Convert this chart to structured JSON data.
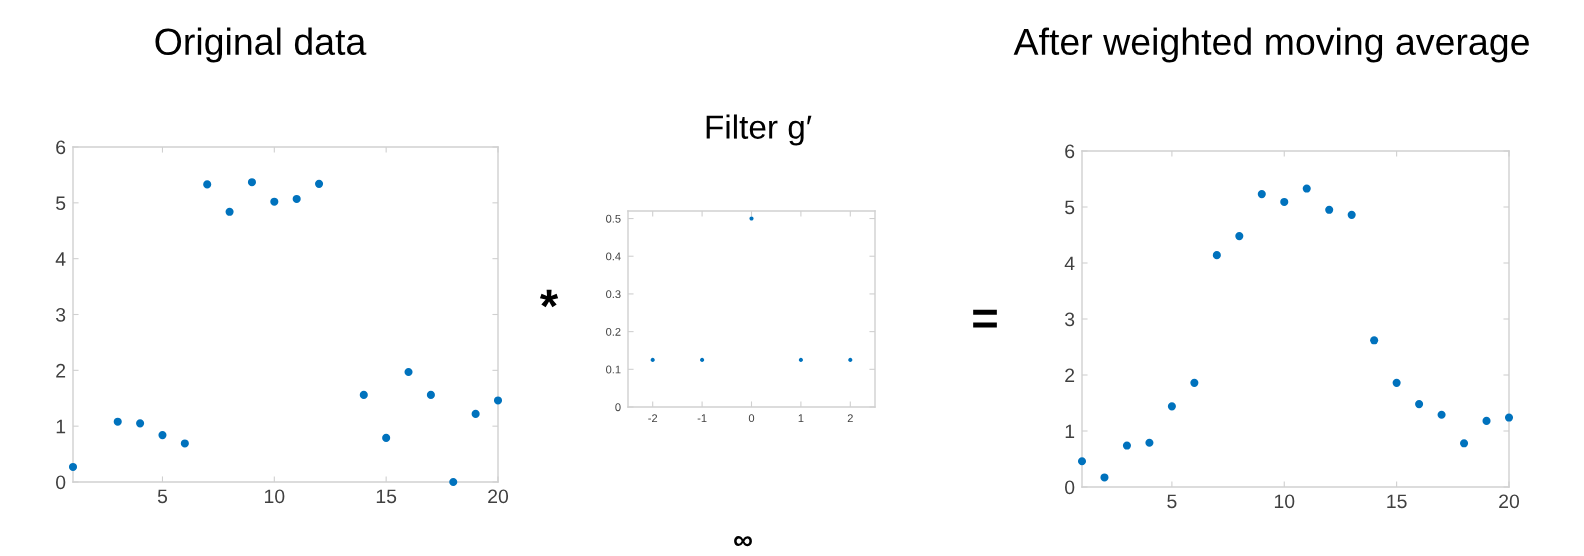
{
  "chart_data": [
    {
      "type": "scatter",
      "title": "Original data",
      "x": [
        1,
        3,
        4,
        5,
        6,
        7,
        8,
        9,
        10,
        11,
        12,
        14,
        15,
        16,
        17,
        18,
        19,
        20
      ],
      "values": [
        0.27,
        1.08,
        1.05,
        0.84,
        0.69,
        5.33,
        4.84,
        5.37,
        5.02,
        5.07,
        5.34,
        1.56,
        0.79,
        1.97,
        1.56,
        0.0,
        1.22,
        1.46
      ],
      "color": "#0072bd",
      "marker": "circle",
      "xlim": [
        1,
        20
      ],
      "ylim": [
        0,
        6
      ],
      "xticks": [
        5,
        10,
        15,
        20
      ],
      "yticks": [
        0,
        1,
        2,
        3,
        4,
        5,
        6
      ],
      "grid": false,
      "annotations": [
        "*"
      ]
    },
    {
      "type": "scatter",
      "title": "Filter g′",
      "x": [
        -2,
        -1,
        0,
        1,
        2
      ],
      "values": [
        0.125,
        0.125,
        0.5,
        0.125,
        0.125
      ],
      "color": "#0072bd",
      "marker": "circle",
      "xlim": [
        -2.5,
        2.5
      ],
      "ylim": [
        0,
        0.52
      ],
      "xticks": [
        -2,
        -1,
        0,
        1,
        2
      ],
      "yticks": [
        0,
        0.1,
        0.2,
        0.3,
        0.4,
        0.5
      ],
      "grid": false,
      "annotations": [
        "=",
        "∞"
      ]
    },
    {
      "type": "scatter",
      "title": "After weighted moving average",
      "x": [
        1,
        2,
        3,
        4,
        5,
        6,
        7,
        8,
        9,
        10,
        11,
        12,
        13,
        14,
        15,
        16,
        17,
        18,
        19,
        20
      ],
      "values": [
        0.46,
        0.17,
        0.74,
        0.79,
        1.44,
        1.86,
        4.14,
        4.48,
        5.23,
        5.09,
        5.33,
        4.95,
        4.86,
        2.62,
        1.86,
        1.48,
        1.29,
        0.78,
        1.18,
        1.24
      ],
      "color": "#0072bd",
      "marker": "circle",
      "xlim": [
        1,
        20
      ],
      "ylim": [
        0,
        6
      ],
      "xticks": [
        5,
        10,
        15,
        20
      ],
      "yticks": [
        0,
        1,
        2,
        3,
        4,
        5,
        6
      ],
      "grid": false
    }
  ]
}
